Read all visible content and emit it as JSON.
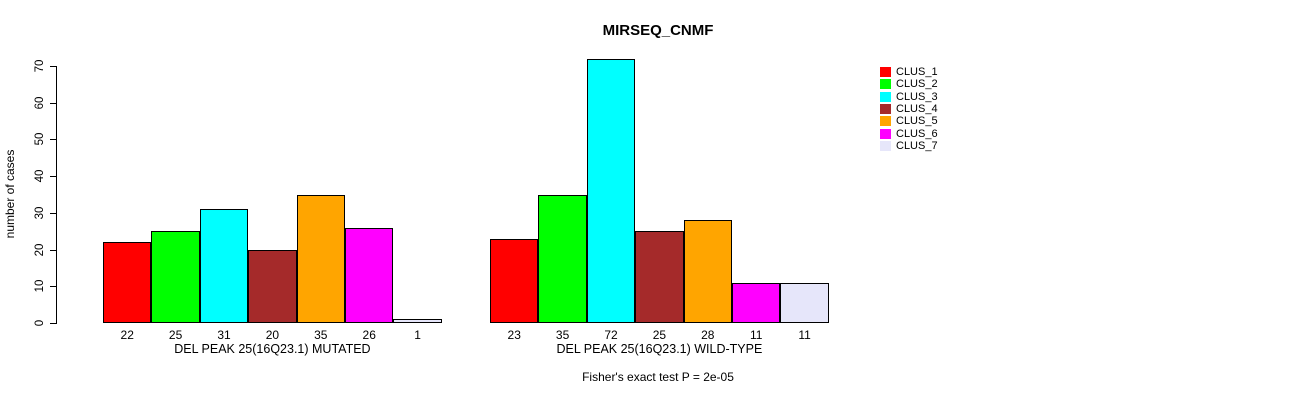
{
  "window": {
    "background": "#FFFFFF",
    "text_color": "#000000",
    "axis_color": "#000000",
    "bar_border_color": "#000000"
  },
  "chart_data": {
    "type": "bar",
    "title": "MIRSEQ_CNMF",
    "xlabel": "",
    "ylabel": "number of cases",
    "ylim": [
      0,
      70
    ],
    "y_ticks": [
      0,
      10,
      20,
      30,
      40,
      50,
      60,
      70
    ],
    "grid": false,
    "legend_position": "right",
    "clusters": [
      {
        "label": "CLUS_1",
        "color": "#FF0000"
      },
      {
        "label": "CLUS_2",
        "color": "#00FF00"
      },
      {
        "label": "CLUS_3",
        "color": "#00FFFF"
      },
      {
        "label": "CLUS_4",
        "color": "#A52A2A"
      },
      {
        "label": "CLUS_5",
        "color": "#FFA500"
      },
      {
        "label": "CLUS_6",
        "color": "#FF00FF"
      },
      {
        "label": "CLUS_7",
        "color": "#E6E6FA"
      }
    ],
    "groups": [
      {
        "label": "DEL PEAK 25(16Q23.1) MUTATED",
        "values": [
          22,
          25,
          31,
          20,
          35,
          26,
          1
        ]
      },
      {
        "label": "DEL PEAK 25(16Q23.1) WILD-TYPE",
        "values": [
          23,
          35,
          72,
          25,
          28,
          11,
          11
        ]
      }
    ],
    "annotation": "Fisher's exact test P = 2e-05"
  }
}
